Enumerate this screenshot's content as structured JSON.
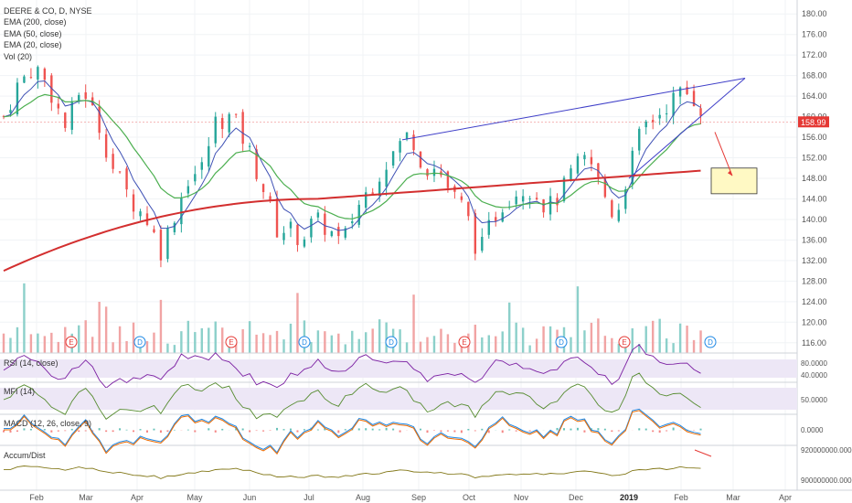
{
  "chart_data": {
    "type": "candlestick",
    "legend": [
      "DEERE & CO, D, NYSE",
      "EMA (200, close)",
      "EMA (50, close)",
      "EMA (20, close)",
      "Vol (20)"
    ],
    "price_axis": {
      "ticks": [
        "180.00",
        "176.00",
        "172.00",
        "168.00",
        "164.00",
        "160.00",
        "156.00",
        "152.00",
        "148.00",
        "144.00",
        "140.00",
        "136.00",
        "132.00",
        "128.00",
        "124.00",
        "120.00",
        "116.00"
      ],
      "ylim": [
        114,
        182
      ],
      "last_price": "158.99",
      "last_price_color": "#e53935"
    },
    "x_axis": {
      "labels": [
        "Feb",
        "Mar",
        "Apr",
        "May",
        "Jun",
        "Jul",
        "Aug",
        "Sep",
        "Oct",
        "Nov",
        "Dec",
        "2019",
        "Feb",
        "Mar",
        "Apr"
      ]
    },
    "ohlc_summary": {
      "sessions": 261,
      "start_close": 160,
      "end_close": 158.99,
      "high": 175,
      "low": 129.5
    },
    "ema_200": {
      "start": 130,
      "mid_plateau": 144,
      "end": 149.5,
      "color": "#d32f2f"
    },
    "ema_50": {
      "color": "#4caf50"
    },
    "ema_20": {
      "color": "#3f51b5"
    },
    "volume": {
      "up_color": "#80cbc4",
      "down_color": "#ef9a9a"
    },
    "events": [
      {
        "type": "E",
        "month": "Feb"
      },
      {
        "type": "D",
        "month": "Mar"
      },
      {
        "type": "E",
        "month": "May"
      },
      {
        "type": "D",
        "month": "Jun"
      },
      {
        "type": "D",
        "month": "Jul"
      },
      {
        "type": "E",
        "month": "Aug"
      },
      {
        "type": "D",
        "month": "Sep"
      },
      {
        "type": "E",
        "month": "Nov"
      },
      {
        "type": "D",
        "month": "Dec"
      },
      {
        "type": "E",
        "month": "Feb"
      }
    ],
    "annotations": {
      "upper_trendline": {
        "from": 155.5,
        "to": 167.5,
        "color": "#3f3fc8"
      },
      "lower_trendline": {
        "from": 148,
        "to": 167.5,
        "color": "#3f3fc8"
      },
      "target_box": {
        "top": 150,
        "bottom": 145,
        "fill": "#fff9c4",
        "border": "#333333"
      },
      "arrow_color": "#e53935"
    },
    "panels": [
      {
        "name": "rsi",
        "label": "RSI (14, close)",
        "ticks": [
          "80.0000",
          "40.0000"
        ],
        "fill": "#ede7f6",
        "line_color": "#7b1fa2"
      },
      {
        "name": "mfi",
        "label": "MFI (14)",
        "ticks": [
          "50.0000"
        ],
        "fill": "#ede7f6",
        "line_color": "#558b2f"
      },
      {
        "name": "macd",
        "label": "MACD (12, 26, close, 9)",
        "ticks": [
          "0.0000"
        ],
        "macd_color": "#1e88e5",
        "signal_color": "#ef6c00"
      },
      {
        "name": "accum",
        "label": "Accum/Dist",
        "ticks": [
          "920000000.0000",
          "900000000.0000"
        ],
        "line_color": "#827717"
      }
    ]
  }
}
